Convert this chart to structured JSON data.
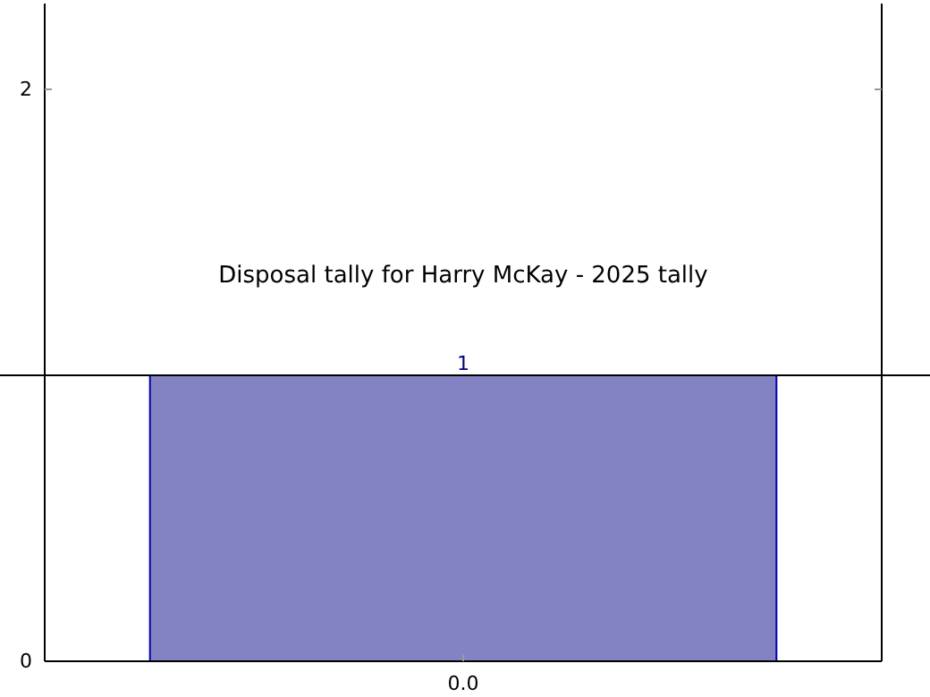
{
  "chart_data": {
    "type": "bar",
    "title": "Disposal tally for Harry McKay - 2025 tally",
    "categories": [
      "0.0"
    ],
    "values": [
      1
    ],
    "color": "#8383c3",
    "ylim": [
      0,
      2.3
    ],
    "yticks": [
      0,
      {
        "value": 1,
        "label": null
      },
      2
    ],
    "data_labels": true,
    "grid": false,
    "ref_lines": [
      {
        "axis": "y",
        "value": 1,
        "label": null,
        "color": "#000000"
      }
    ]
  }
}
